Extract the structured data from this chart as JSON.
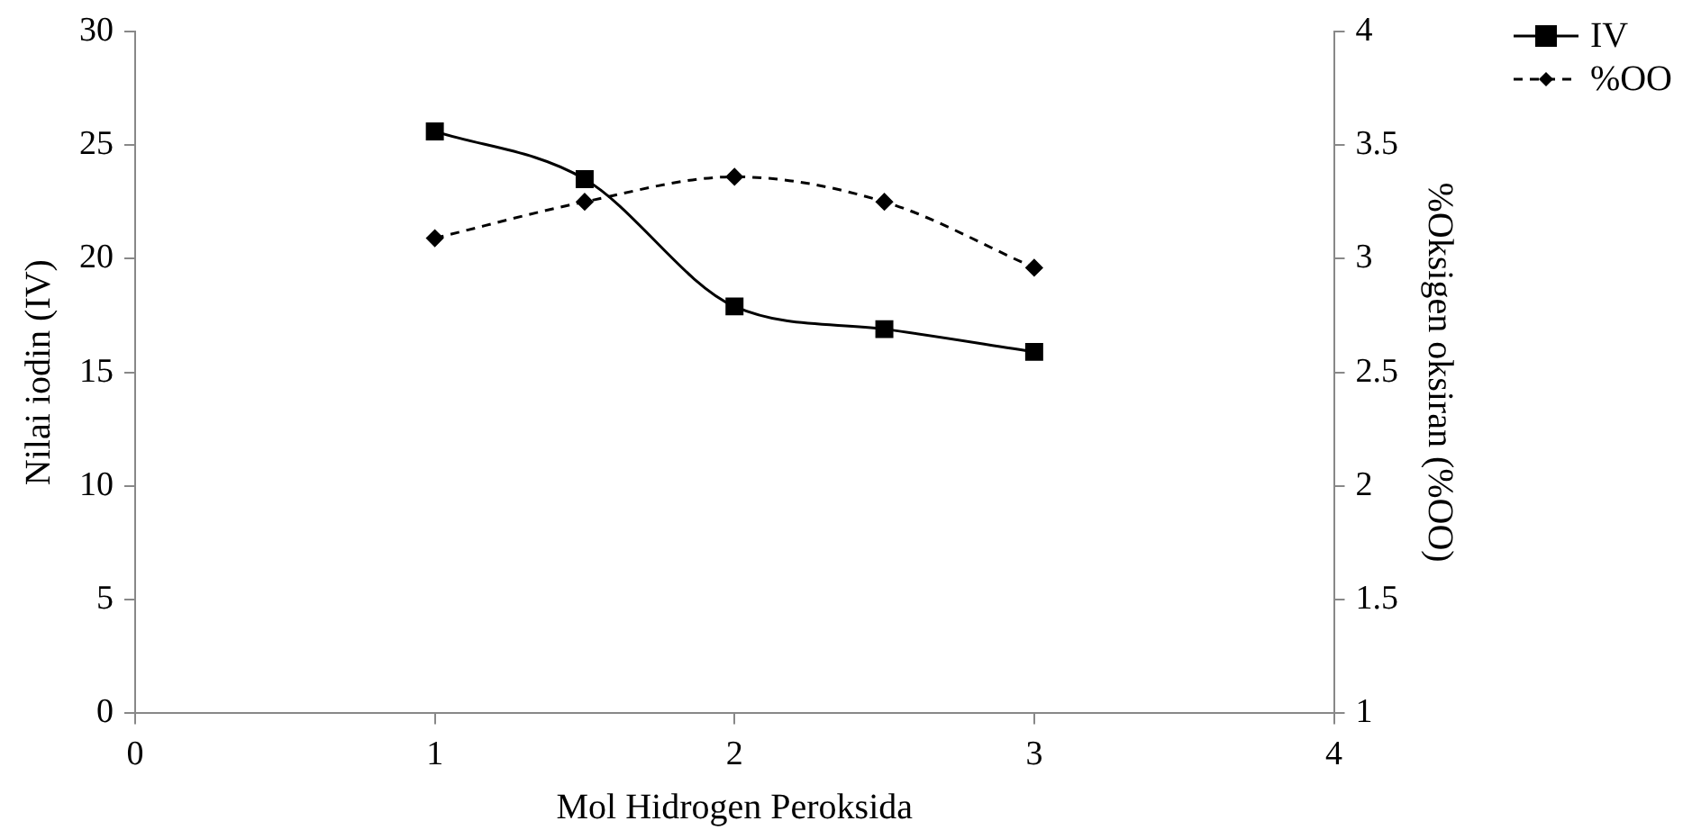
{
  "chart_data": {
    "type": "line",
    "xlabel": "Mol Hidrogen Peroksida",
    "ylabel": "Nilai iodin (IV)",
    "y2label": "%Oksigen oksiran (%OO)",
    "x": [
      1,
      1.5,
      2,
      2.5,
      3
    ],
    "series": [
      {
        "name": "IV",
        "color": "#000000",
        "values": [
          25.6,
          23.5,
          17.9,
          16.9,
          15.9
        ],
        "marker": "square",
        "line_style": "solid"
      },
      {
        "name": "%OO",
        "color": "#000000",
        "values": [
          3.09,
          3.25,
          3.36,
          3.25,
          2.96
        ],
        "axis": "y2",
        "marker": "diamond",
        "line_style": "dashed"
      }
    ],
    "xlim": [
      0,
      4
    ],
    "xticks": [
      0,
      1,
      2,
      3,
      4
    ],
    "ylim": [
      0,
      30
    ],
    "yticks": [
      0,
      5,
      10,
      15,
      20,
      25,
      30
    ],
    "y2lim": [
      1,
      4
    ],
    "y2ticks": [
      1,
      1.5,
      2,
      2.5,
      3,
      3.5,
      4
    ],
    "grid": false,
    "legend": "top right"
  }
}
